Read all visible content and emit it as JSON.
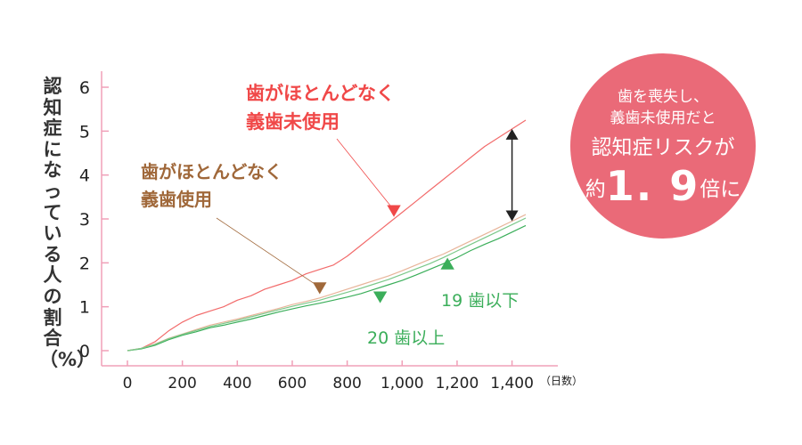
{
  "chart_data": {
    "type": "line",
    "ylabel": "認知症になっている人の割合（%）",
    "x_unit_label": "（日数）",
    "xlim": [
      0,
      1450
    ],
    "ylim": [
      0,
      6
    ],
    "x_ticks": [
      0,
      200,
      400,
      600,
      800,
      1000,
      1200,
      1400
    ],
    "x_tick_labels": [
      "0",
      "200",
      "400",
      "600",
      "800",
      "1,000",
      "1,200",
      "1,400"
    ],
    "y_ticks": [
      0,
      1,
      2,
      3,
      4,
      5,
      6
    ],
    "y_tick_labels": [
      "0",
      "1",
      "2",
      "3",
      "4",
      "5",
      "6"
    ],
    "grid": false,
    "series": [
      {
        "name": "歯がほとんどなく義歯未使用",
        "color": "#f26b6b",
        "x": [
          0,
          50,
          100,
          150,
          200,
          250,
          300,
          350,
          400,
          450,
          500,
          550,
          600,
          650,
          700,
          750,
          800,
          850,
          900,
          950,
          1000,
          1050,
          1100,
          1150,
          1200,
          1250,
          1300,
          1350,
          1400,
          1450
        ],
        "y": [
          0,
          0.05,
          0.2,
          0.45,
          0.65,
          0.8,
          0.9,
          1.0,
          1.15,
          1.25,
          1.4,
          1.5,
          1.6,
          1.75,
          1.85,
          1.95,
          2.15,
          2.4,
          2.65,
          2.9,
          3.15,
          3.4,
          3.65,
          3.9,
          4.15,
          4.4,
          4.65,
          4.85,
          5.05,
          5.25
        ]
      },
      {
        "name": "歯がほとんどなく義歯使用",
        "color": "#e8b49a",
        "x": [
          0,
          50,
          100,
          150,
          200,
          250,
          300,
          350,
          400,
          450,
          500,
          550,
          600,
          650,
          700,
          750,
          800,
          850,
          900,
          950,
          1000,
          1050,
          1100,
          1150,
          1200,
          1250,
          1300,
          1350,
          1400,
          1450
        ],
        "y": [
          0,
          0.05,
          0.15,
          0.28,
          0.38,
          0.48,
          0.58,
          0.65,
          0.72,
          0.8,
          0.88,
          0.96,
          1.05,
          1.12,
          1.2,
          1.3,
          1.4,
          1.5,
          1.6,
          1.7,
          1.82,
          1.95,
          2.08,
          2.2,
          2.35,
          2.5,
          2.65,
          2.8,
          2.95,
          3.1
        ]
      },
      {
        "name": "20歯以上",
        "color": "#3bae5a",
        "x": [
          0,
          50,
          100,
          150,
          200,
          250,
          300,
          350,
          400,
          450,
          500,
          550,
          600,
          650,
          700,
          750,
          800,
          850,
          900,
          950,
          1000,
          1050,
          1100,
          1150,
          1200,
          1250,
          1300,
          1350,
          1400,
          1450
        ],
        "y": [
          0,
          0.04,
          0.12,
          0.25,
          0.35,
          0.43,
          0.52,
          0.58,
          0.65,
          0.72,
          0.8,
          0.88,
          0.95,
          1.02,
          1.08,
          1.15,
          1.22,
          1.3,
          1.4,
          1.5,
          1.6,
          1.72,
          1.85,
          1.98,
          2.12,
          2.28,
          2.42,
          2.55,
          2.7,
          2.85
        ]
      },
      {
        "name": "19歯以下",
        "color": "#7cc88a",
        "x": [
          0,
          50,
          100,
          150,
          200,
          250,
          300,
          350,
          400,
          450,
          500,
          550,
          600,
          650,
          700,
          750,
          800,
          850,
          900,
          950,
          1000,
          1050,
          1100,
          1150,
          1200,
          1250,
          1300,
          1350,
          1400,
          1450
        ],
        "y": [
          0,
          0.05,
          0.14,
          0.27,
          0.37,
          0.46,
          0.55,
          0.62,
          0.69,
          0.77,
          0.85,
          0.93,
          1.01,
          1.08,
          1.15,
          1.24,
          1.33,
          1.42,
          1.52,
          1.62,
          1.74,
          1.86,
          1.98,
          2.12,
          2.27,
          2.42,
          2.57,
          2.72,
          2.87,
          3.02
        ]
      }
    ],
    "annotations": [
      {
        "text_lines": [
          "歯がほとんどなく",
          "義歯未使用"
        ],
        "color": "#f04848",
        "target_series": 0,
        "target_x": 970
      },
      {
        "text_lines": [
          "歯がほとんどなく",
          "義歯使用"
        ],
        "color": "#a0683a",
        "target_series": 1,
        "target_x": 700
      },
      {
        "text": "19 歯以下",
        "color": "#3bae5a",
        "target_series": 3,
        "target_x": 1165
      },
      {
        "text": "20 歯以上",
        "color": "#3bae5a",
        "target_series": 2,
        "target_x": 920
      }
    ],
    "gap_marker": {
      "x": 1400,
      "y_from": 2.95,
      "y_to": 5.05,
      "color": "#222222"
    }
  },
  "callout": {
    "line1": "歯を喪失し、",
    "line2": "義歯未使用だと",
    "line3": "認知症リスクが",
    "line4_pre": "約",
    "line4_big": "1. 9",
    "line4_post": "倍に",
    "color": "#ea6a78"
  }
}
